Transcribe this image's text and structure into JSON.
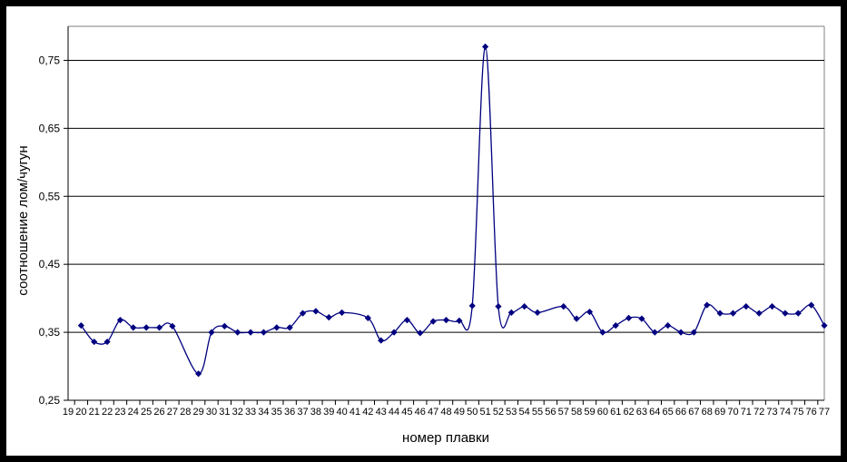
{
  "chart_data": {
    "type": "line",
    "title": "",
    "xlabel": "номер плавки",
    "ylabel": "соотношение лом/чугун",
    "x": [
      19,
      20,
      21,
      22,
      23,
      24,
      25,
      26,
      27,
      28,
      29,
      30,
      31,
      32,
      33,
      34,
      35,
      36,
      37,
      38,
      39,
      40,
      41,
      42,
      43,
      44,
      45,
      46,
      47,
      48,
      49,
      50,
      51,
      52,
      53,
      54,
      55,
      56,
      57,
      58,
      59,
      60,
      61,
      62,
      63,
      64,
      65,
      66,
      67,
      68,
      69,
      70,
      71,
      72,
      73,
      74,
      75,
      76,
      77
    ],
    "values": [
      null,
      0.36,
      0.336,
      0.336,
      0.368,
      0.357,
      0.357,
      0.357,
      0.359,
      null,
      0.289,
      0.35,
      0.359,
      0.35,
      0.35,
      0.35,
      0.357,
      0.357,
      0.378,
      0.381,
      0.372,
      0.379,
      null,
      0.371,
      0.338,
      0.35,
      0.368,
      0.349,
      0.366,
      0.368,
      0.367,
      0.389,
      0.77,
      0.388,
      0.379,
      0.388,
      0.379,
      null,
      0.388,
      0.37,
      0.38,
      0.35,
      0.36,
      0.371,
      0.37,
      0.35,
      0.36,
      0.35,
      0.35,
      0.39,
      0.378,
      0.378,
      0.388,
      0.378,
      0.388,
      0.378,
      0.378,
      0.39,
      0.36
    ],
    "ylim": [
      0.25,
      0.8
    ],
    "yticks": [
      0.25,
      0.35,
      0.45,
      0.55,
      0.65,
      0.75
    ],
    "ytick_labels": [
      "0,25",
      "0,35",
      "0,45",
      "0,55",
      "0,65",
      "0,75"
    ],
    "grid": "horizontal",
    "legend": false,
    "marker": "diamond",
    "colors": {
      "line": "#000080",
      "marker": "#000080",
      "gridline": "#000000",
      "axis": "#000000",
      "plot_border": "#808080",
      "image_border": "#000000",
      "background": "#ffffff"
    }
  }
}
